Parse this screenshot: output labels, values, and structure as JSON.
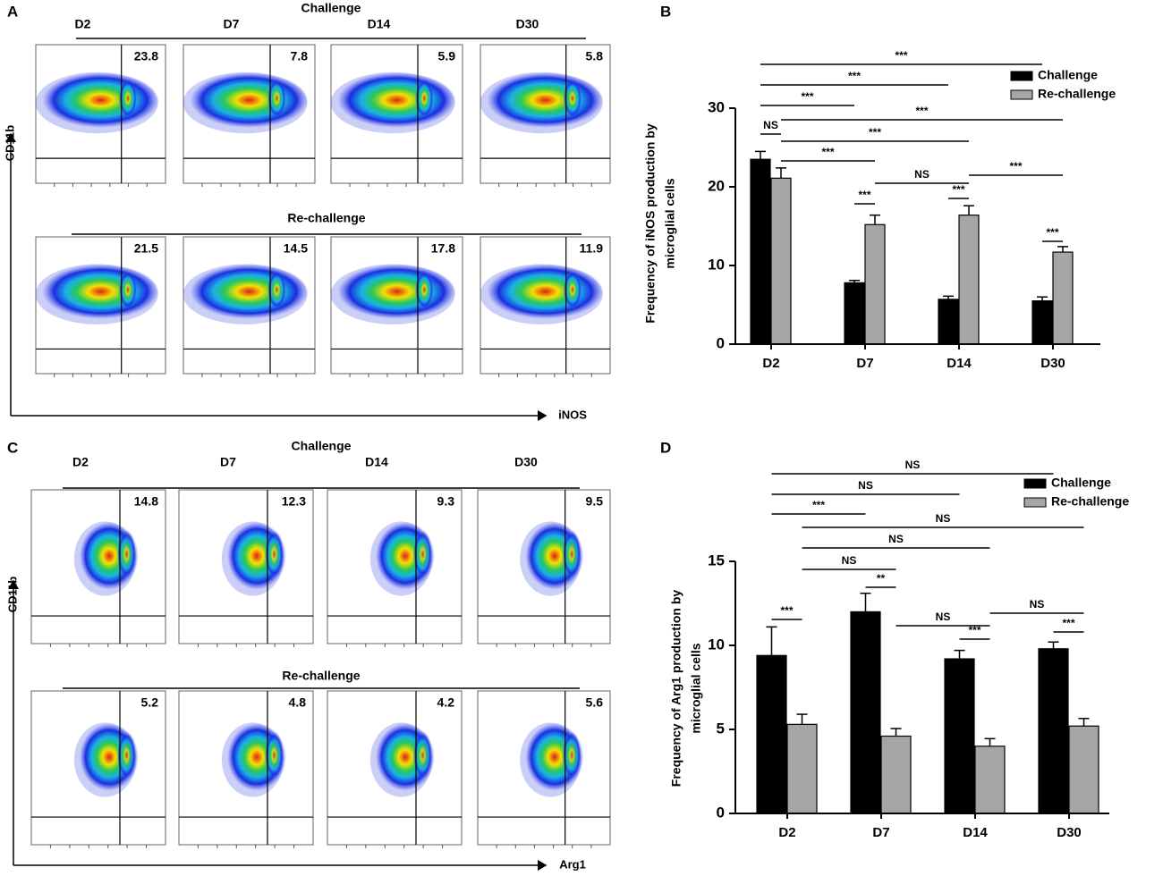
{
  "panel_labels": [
    "A",
    "B",
    "C",
    "D"
  ],
  "flow": [
    {
      "days": [
        "D2",
        "D7",
        "D14",
        "D30"
      ],
      "x_label": "iNOS",
      "y_label": "CD11b",
      "groups": [
        {
          "name": "Challenge",
          "percentages": [
            23.8,
            7.8,
            5.9,
            5.8
          ]
        },
        {
          "name": "Re-challenge",
          "percentages": [
            21.5,
            14.5,
            17.8,
            11.9
          ]
        }
      ]
    },
    {
      "days": [
        "D2",
        "D7",
        "D14",
        "D30"
      ],
      "x_label": "Arg1",
      "y_label": "CD11b",
      "groups": [
        {
          "name": "Challenge",
          "percentages": [
            14.8,
            12.3,
            9.3,
            9.5
          ]
        },
        {
          "name": "Re-challenge",
          "percentages": [
            5.2,
            4.8,
            4.2,
            5.6
          ]
        }
      ]
    }
  ],
  "chart_data": [
    {
      "type": "bar",
      "ylabel": [
        "Frequency of iNOS production by",
        "microglial cells"
      ],
      "categories": [
        "D2",
        "D7",
        "D14",
        "D30"
      ],
      "series": [
        {
          "name": "Challenge",
          "color": "#000000",
          "values": [
            23.5,
            7.8,
            5.7,
            5.5
          ],
          "errors": [
            1.0,
            0.3,
            0.4,
            0.5
          ]
        },
        {
          "name": "Re-challenge",
          "color": "#a6a6a6",
          "values": [
            21.1,
            15.2,
            16.4,
            11.7
          ],
          "errors": [
            1.3,
            1.2,
            1.2,
            0.7
          ]
        }
      ],
      "ylim": [
        0,
        30
      ],
      "yticks": [
        0,
        10,
        20,
        30
      ],
      "legend": "upper right",
      "annotations": [
        "***",
        "***",
        "***",
        "***",
        "NS",
        "***",
        "***",
        "NS",
        "***",
        "***",
        "***",
        "***"
      ]
    },
    {
      "type": "bar",
      "ylabel": [
        "Frequency of Arg1 production by",
        "microglial cells"
      ],
      "categories": [
        "D2",
        "D7",
        "D14",
        "D30"
      ],
      "series": [
        {
          "name": "Challenge",
          "color": "#000000",
          "values": [
            9.4,
            12.0,
            9.2,
            9.8
          ],
          "errors": [
            1.7,
            1.1,
            0.5,
            0.4
          ]
        },
        {
          "name": "Re-challenge",
          "color": "#a6a6a6",
          "values": [
            5.3,
            4.6,
            4.0,
            5.2
          ],
          "errors": [
            0.6,
            0.45,
            0.45,
            0.45
          ]
        }
      ],
      "ylim": [
        0,
        15
      ],
      "yticks": [
        0,
        5,
        10,
        15
      ],
      "legend": "upper right",
      "annotations": [
        "NS",
        "NS",
        "***",
        "NS",
        "NS",
        "NS",
        "**",
        "NS",
        "NS",
        "***",
        "***",
        "***"
      ]
    }
  ]
}
